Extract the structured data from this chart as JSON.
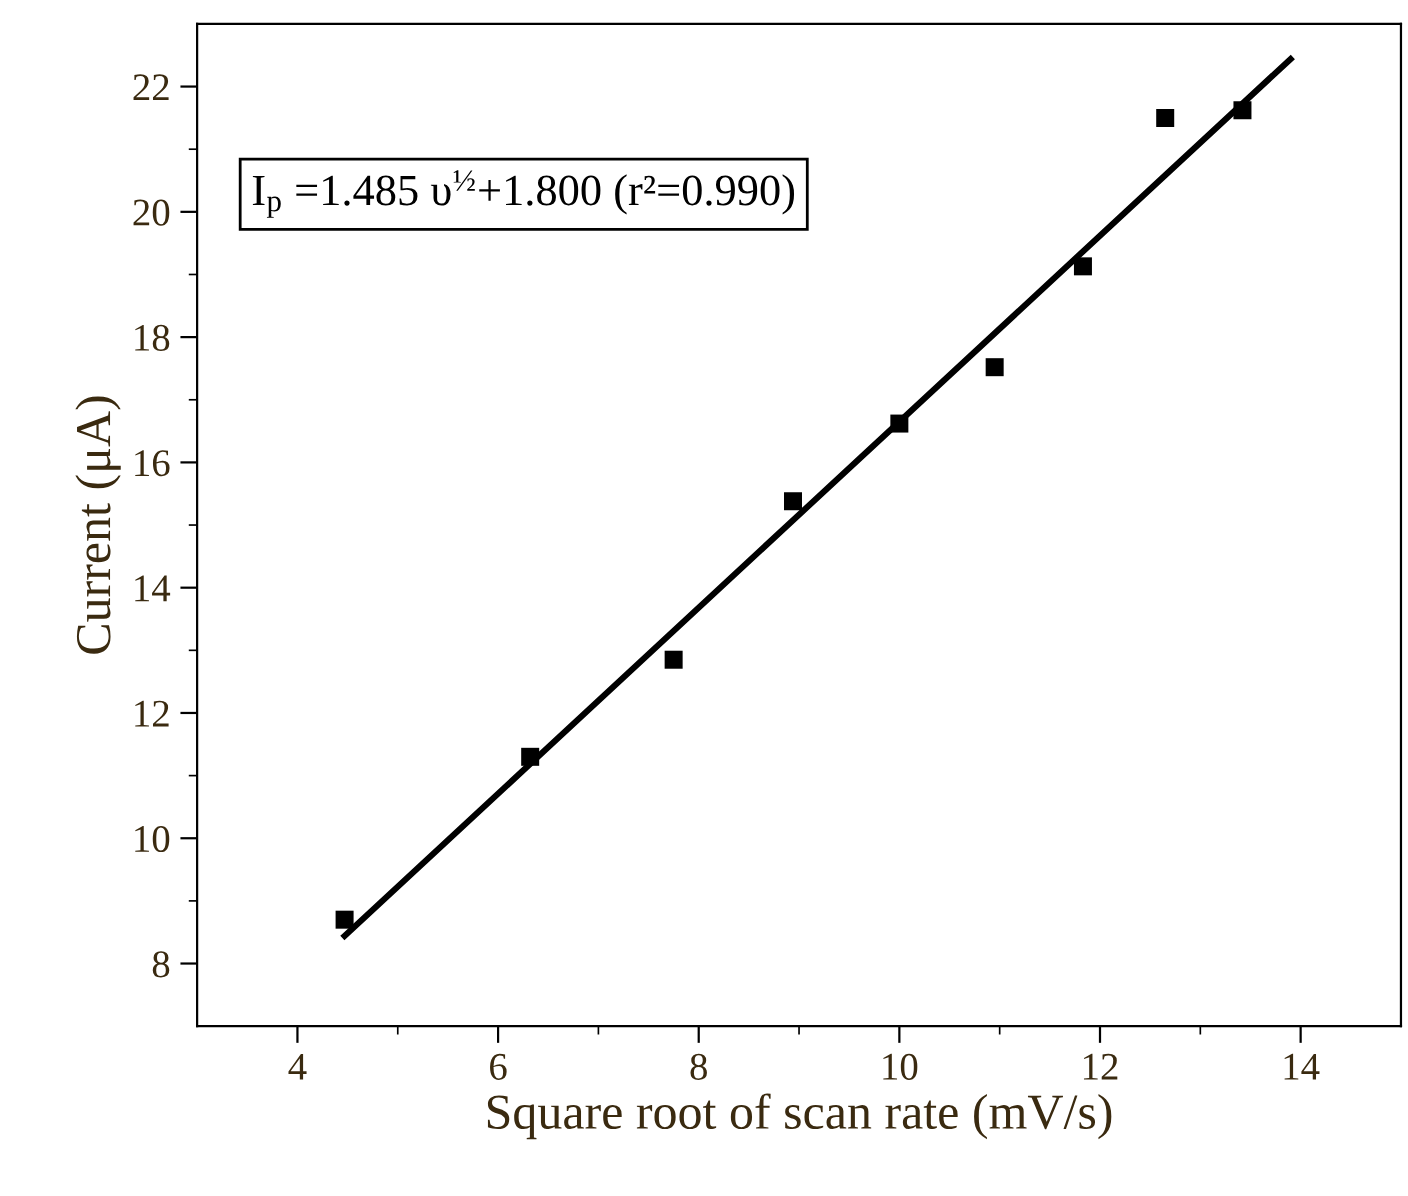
{
  "chart_data": {
    "type": "scatter",
    "xlabel": "Square root of scan rate (mV/s)",
    "ylabel": "Current (μA)",
    "x": [
      4.47,
      6.32,
      7.75,
      8.94,
      10.0,
      10.95,
      11.83,
      12.65,
      13.42
    ],
    "series": [
      {
        "color": "#000000",
        "marker": "square",
        "values": [
          8.7,
          11.3,
          12.85,
          15.38,
          16.62,
          17.52,
          19.13,
          21.5,
          21.62
        ]
      },
      {
        "type": "line",
        "color": "#000000",
        "marker": "none",
        "line_style": "solid",
        "x": [
          4.47,
          13.9
        ],
        "values": [
          8.44,
          22.44
        ]
      }
    ],
    "annotations": [
      "I$_{p}$ =1.485 υ$^{½}$+1.800 (r²=0.990)"
    ],
    "xlim": [
      3,
      15
    ],
    "xticks": [
      4,
      6,
      8,
      10,
      12,
      14
    ],
    "ylim": [
      7,
      23
    ],
    "yticks": [
      8,
      10,
      12,
      14,
      16,
      18,
      20,
      22
    ],
    "grid": false,
    "legend": false
  }
}
